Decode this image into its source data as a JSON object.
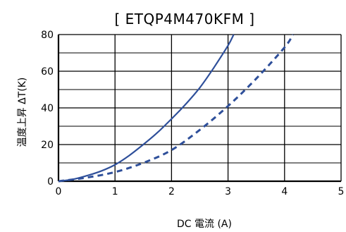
{
  "chart_data": {
    "type": "line",
    "title": "[ ETQP4M470KFM ]",
    "xlabel": "DC 電流 (A)",
    "ylabel": "温度上昇 ΔT(K)",
    "xlim": [
      0,
      5
    ],
    "ylim": [
      0,
      80
    ],
    "x_ticks": [
      0,
      1,
      2,
      3,
      4,
      5
    ],
    "y_ticks": [
      0,
      20,
      40,
      60,
      80
    ],
    "grid": true,
    "legend": "none",
    "series": [
      {
        "style": "solid",
        "color": "#2e4f9a",
        "x": [
          0,
          0.25,
          0.5,
          0.75,
          1.0,
          1.25,
          1.5,
          1.75,
          2.0,
          2.25,
          2.5,
          2.75,
          3.0,
          3.1
        ],
        "y": [
          0,
          1,
          3,
          5.5,
          9,
          14,
          20,
          26.5,
          34,
          42,
          51,
          62,
          74,
          80
        ]
      },
      {
        "style": "dashed",
        "color": "#2e4f9a",
        "x": [
          0,
          0.5,
          1.0,
          1.5,
          2.0,
          2.5,
          3.0,
          3.5,
          4.0,
          4.15
        ],
        "y": [
          0,
          2,
          5,
          10,
          17,
          28,
          41,
          56,
          73,
          80
        ]
      }
    ]
  }
}
